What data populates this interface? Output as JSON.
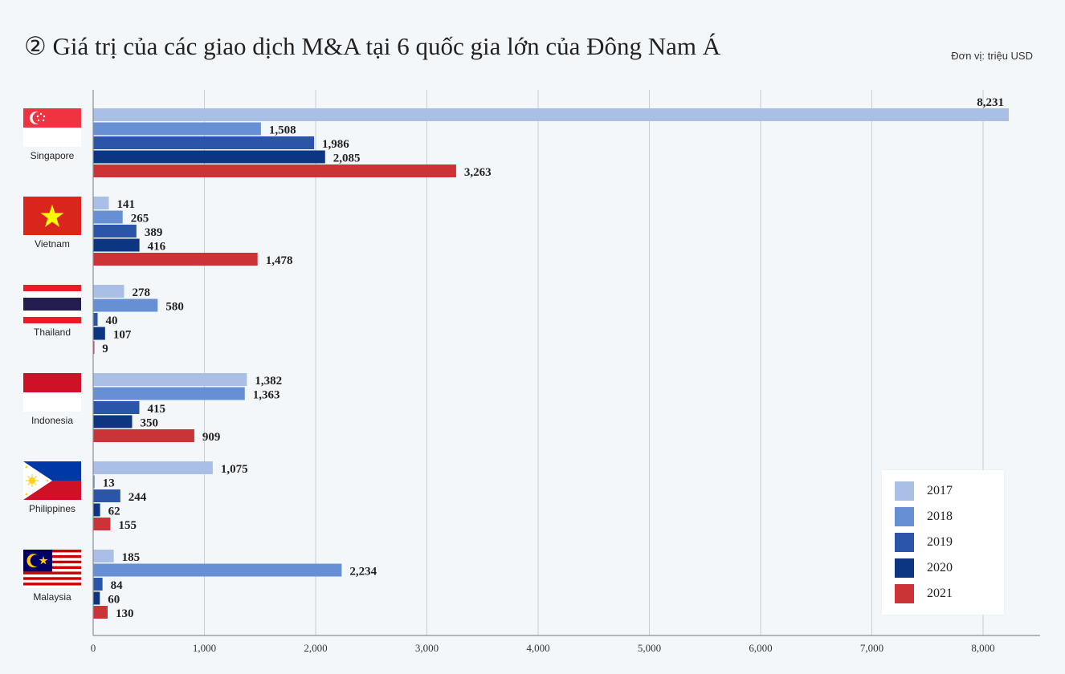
{
  "header": {
    "title": "② Giá trị của các giao dịch M&A tại 6 quốc gia lớn của Đông Nam Á",
    "unit": "Đơn vị: triệu USD"
  },
  "colors": {
    "2017": "#a9bfe6",
    "2018": "#6690d3",
    "2019": "#2b55a8",
    "2020": "#0c3582",
    "2021": "#cc3336",
    "grid": "#c9ced6",
    "axis": "#8a8f98"
  },
  "legend": {
    "items": [
      {
        "label": "2017",
        "color": "#a9bfe6"
      },
      {
        "label": "2018",
        "color": "#6690d3"
      },
      {
        "label": "2019",
        "color": "#2b55a8"
      },
      {
        "label": "2020",
        "color": "#0c3582"
      },
      {
        "label": "2021",
        "color": "#cc3336"
      }
    ]
  },
  "chart_data": {
    "type": "bar",
    "orientation": "horizontal",
    "title": "② Giá trị của các giao dịch M&A tại 6 quốc gia lớn của Đông Nam Á",
    "xlabel": "",
    "ylabel": "",
    "xlim": [
      0,
      8500
    ],
    "xticks": [
      0,
      1000,
      2000,
      3000,
      4000,
      5000,
      6000,
      7000,
      8000
    ],
    "xtick_labels": [
      "0",
      "1,000",
      "2,000",
      "3,000",
      "4,000",
      "5,000",
      "6,000",
      "7,000",
      "8,000"
    ],
    "grid": true,
    "legend_position": "bottom-right",
    "categories": [
      "Singapore",
      "Vietnam",
      "Thailand",
      "Indonesia",
      "Philippines",
      "Malaysia"
    ],
    "series": [
      {
        "name": "2017",
        "values": [
          8231,
          141,
          278,
          1382,
          1075,
          185
        ],
        "labels": [
          "8,231",
          "141",
          "278",
          "1,382",
          "1,075",
          "185"
        ]
      },
      {
        "name": "2018",
        "values": [
          1508,
          265,
          580,
          1363,
          13,
          2234
        ],
        "labels": [
          "1,508",
          "265",
          "580",
          "1,363",
          "13",
          "2,234"
        ]
      },
      {
        "name": "2019",
        "values": [
          1986,
          389,
          40,
          415,
          244,
          84
        ],
        "labels": [
          "1,986",
          "389",
          "40",
          "415",
          "244",
          "84"
        ]
      },
      {
        "name": "2020",
        "values": [
          2085,
          416,
          107,
          350,
          62,
          60
        ],
        "labels": [
          "2,085",
          "416",
          "107",
          "350",
          "62",
          "60"
        ]
      },
      {
        "name": "2021",
        "values": [
          3263,
          1478,
          9,
          909,
          155,
          130
        ],
        "labels": [
          "3,263",
          "1,478",
          "9",
          "909",
          "155",
          "130"
        ]
      }
    ]
  }
}
